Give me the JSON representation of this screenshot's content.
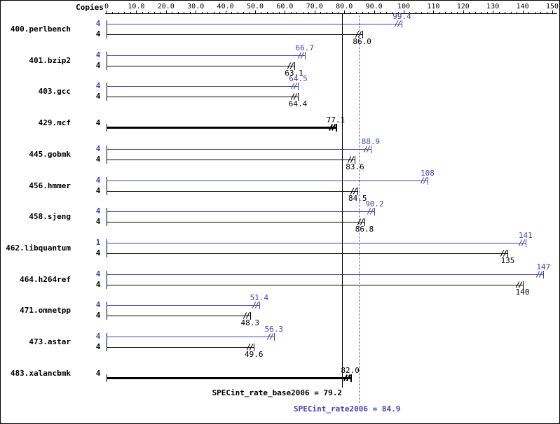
{
  "header": {
    "copies_label": "Copies"
  },
  "colors": {
    "peak": "#4040c0",
    "base": "#000000"
  },
  "chart_data": {
    "type": "bar",
    "orientation": "horizontal",
    "title": "SPEC CINT2006 rate results",
    "xlabel": "",
    "ylabel": "Copies",
    "xlim": [
      0,
      150
    ],
    "grid": false,
    "legend_position": "none",
    "axis": {
      "min": 0,
      "max": 150,
      "minor_step": 2,
      "major_ticks": [
        {
          "value": 0,
          "label": "0"
        },
        {
          "value": 10,
          "label": "10.0"
        },
        {
          "value": 20,
          "label": "20.0"
        },
        {
          "value": 30,
          "label": "30.0"
        },
        {
          "value": 40,
          "label": "40.0"
        },
        {
          "value": 50,
          "label": "50.0"
        },
        {
          "value": 60,
          "label": "60.0"
        },
        {
          "value": 70,
          "label": "70.0"
        },
        {
          "value": 80,
          "label": "80.0"
        },
        {
          "value": 90,
          "label": "90.0"
        },
        {
          "value": 100,
          "label": "100"
        },
        {
          "value": 110,
          "label": "110"
        },
        {
          "value": 120,
          "label": "120"
        },
        {
          "value": 130,
          "label": "130"
        },
        {
          "value": 140,
          "label": "140"
        },
        {
          "value": 150,
          "label": "150"
        }
      ]
    },
    "benchmarks": [
      {
        "name": "400.perlbench",
        "bars": [
          {
            "series": "peak",
            "copies": "4",
            "value": 99.4,
            "value_label": "99.4",
            "label_position": "above",
            "bold": false
          },
          {
            "series": "base",
            "copies": "4",
            "value": 86.0,
            "value_label": "86.0",
            "label_position": "below",
            "bold": false
          }
        ]
      },
      {
        "name": "401.bzip2",
        "bars": [
          {
            "series": "peak",
            "copies": "4",
            "value": 66.7,
            "value_label": "66.7",
            "label_position": "above",
            "bold": false
          },
          {
            "series": "base",
            "copies": "4",
            "value": 63.1,
            "value_label": "63.1",
            "label_position": "below",
            "bold": false
          }
        ]
      },
      {
        "name": "403.gcc",
        "bars": [
          {
            "series": "peak",
            "copies": "4",
            "value": 64.5,
            "value_label": "64.5",
            "label_position": "above",
            "bold": false
          },
          {
            "series": "base",
            "copies": "4",
            "value": 64.4,
            "value_label": "64.4",
            "label_position": "below",
            "bold": false
          }
        ]
      },
      {
        "name": "429.mcf",
        "bars": [
          {
            "series": "base",
            "copies": "4",
            "value": 77.1,
            "value_label": "77.1",
            "label_position": "above",
            "bold": true
          }
        ]
      },
      {
        "name": "445.gobmk",
        "bars": [
          {
            "series": "peak",
            "copies": "4",
            "value": 88.9,
            "value_label": "88.9",
            "label_position": "above",
            "bold": false
          },
          {
            "series": "base",
            "copies": "4",
            "value": 83.6,
            "value_label": "83.6",
            "label_position": "below",
            "bold": false
          }
        ]
      },
      {
        "name": "456.hmmer",
        "bars": [
          {
            "series": "peak",
            "copies": "4",
            "value": 108,
            "value_label": "108",
            "label_position": "above",
            "bold": false
          },
          {
            "series": "base",
            "copies": "4",
            "value": 84.5,
            "value_label": "84.5",
            "label_position": "below",
            "bold": false
          }
        ]
      },
      {
        "name": "458.sjeng",
        "bars": [
          {
            "series": "peak",
            "copies": "4",
            "value": 90.2,
            "value_label": "90.2",
            "label_position": "above",
            "bold": false
          },
          {
            "series": "base",
            "copies": "4",
            "value": 86.8,
            "value_label": "86.8",
            "label_position": "below",
            "bold": false
          }
        ]
      },
      {
        "name": "462.libquantum",
        "bars": [
          {
            "series": "peak",
            "copies": "1",
            "value": 141,
            "value_label": "141",
            "label_position": "above",
            "bold": false
          },
          {
            "series": "base",
            "copies": "4",
            "value": 135,
            "value_label": "135",
            "label_position": "below",
            "bold": false
          }
        ]
      },
      {
        "name": "464.h264ref",
        "bars": [
          {
            "series": "peak",
            "copies": "4",
            "value": 147,
            "value_label": "147",
            "label_position": "above",
            "bold": false
          },
          {
            "series": "base",
            "copies": "4",
            "value": 140,
            "value_label": "140",
            "label_position": "below",
            "bold": false
          }
        ]
      },
      {
        "name": "471.omnetpp",
        "bars": [
          {
            "series": "peak",
            "copies": "4",
            "value": 51.4,
            "value_label": "51.4",
            "label_position": "above",
            "bold": false
          },
          {
            "series": "base",
            "copies": "4",
            "value": 48.3,
            "value_label": "48.3",
            "label_position": "below",
            "bold": false
          }
        ]
      },
      {
        "name": "473.astar",
        "bars": [
          {
            "series": "peak",
            "copies": "4",
            "value": 56.3,
            "value_label": "56.3",
            "label_position": "above",
            "bold": false
          },
          {
            "series": "base",
            "copies": "4",
            "value": 49.6,
            "value_label": "49.6",
            "label_position": "below",
            "bold": false
          }
        ]
      },
      {
        "name": "483.xalancbmk",
        "bars": [
          {
            "series": "base",
            "copies": "4",
            "value": 82.0,
            "value_label": "82.0",
            "label_position": "above",
            "bold": true
          }
        ]
      }
    ],
    "reference_lines": [
      {
        "name": "base",
        "text": "SPECint_rate_base2006 = 79.2",
        "value": 79.2,
        "style": "solid",
        "color": "#000000"
      },
      {
        "name": "peak",
        "text": "SPECint_rate2006 = 84.9",
        "value": 84.9,
        "style": "dotted",
        "color": "#4040c0"
      }
    ]
  }
}
